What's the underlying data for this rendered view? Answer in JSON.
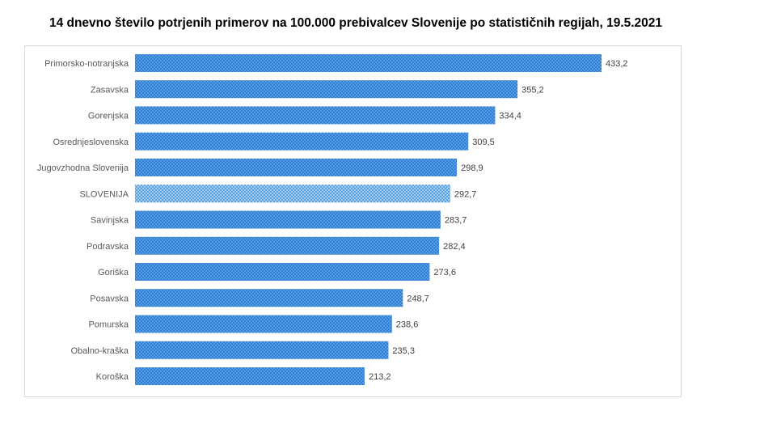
{
  "chart_data": {
    "type": "bar",
    "orientation": "horizontal",
    "title": "14 dnevno število potrjenih primerov na 100.000 prebivalcev Slovenije po statističnih regijah, 19.5.2021",
    "categories": [
      "Primorsko-notranjska",
      "Zasavska",
      "Gorenjska",
      "Osrednjeslovenska",
      "Jugovzhodna Slovenija",
      "SLOVENIJA",
      "Savinjska",
      "Podravska",
      "Goriška",
      "Posavska",
      "Pomurska",
      "Obalno-kraška",
      "Koroška"
    ],
    "values": [
      433.2,
      355.2,
      334.4,
      309.5,
      298.9,
      292.7,
      283.7,
      282.4,
      273.6,
      248.7,
      238.6,
      235.3,
      213.2
    ],
    "data_labels": [
      "433,2",
      "355,2",
      "334,4",
      "309,5",
      "298,9",
      "292,7",
      "283,7",
      "282,4",
      "273,6",
      "248,7",
      "238,6",
      "235,3",
      "213,2"
    ],
    "highlight": "SLOVENIJA",
    "xlim": [
      0,
      433.2
    ],
    "grid": false,
    "legend": "none",
    "colors": {
      "bar": "#2e7fd6",
      "bar_dots": "#9cc8f0",
      "highlight": "#5aa0de",
      "highlight_dots": "#d8ecfa"
    }
  }
}
